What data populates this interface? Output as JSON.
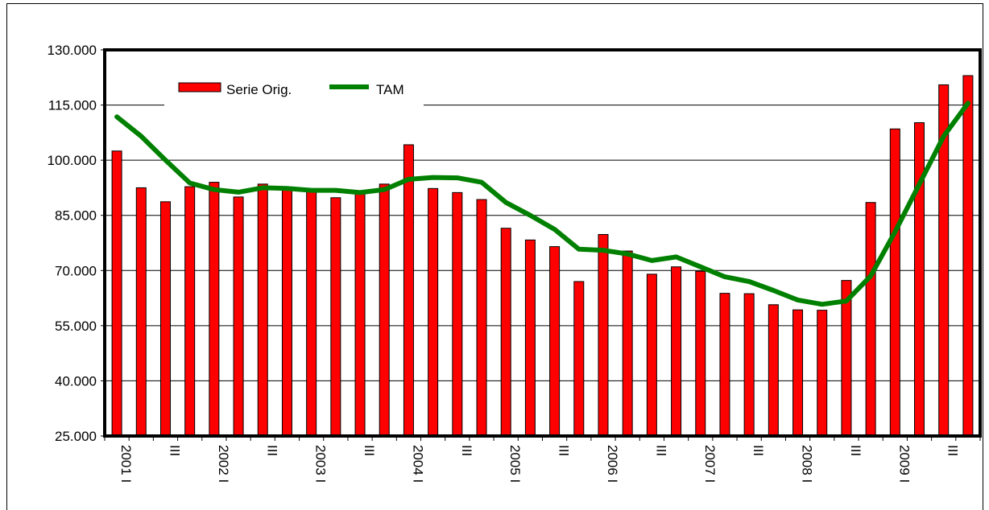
{
  "chart_data": {
    "type": "bar",
    "title": "",
    "xlabel": "",
    "ylabel": "",
    "ylim": [
      25000,
      130000
    ],
    "y_ticks": [
      25000,
      40000,
      55000,
      70000,
      85000,
      100000,
      115000,
      130000
    ],
    "y_tick_labels": [
      "25.000",
      "40.000",
      "55.000",
      "70.000",
      "85.000",
      "100.000",
      "115.000",
      "130.000"
    ],
    "grid": "horizontal",
    "legend_position": "top-left",
    "categories": [
      "2001 I",
      "",
      "III",
      "",
      "2002 I",
      "",
      "III",
      "",
      "2003 I",
      "",
      "III",
      "",
      "2004 I",
      "",
      "III",
      "",
      "2005 I",
      "",
      "III",
      "",
      "2006 I",
      "",
      "III",
      "",
      "2007 I",
      "",
      "III",
      "",
      "2008 I",
      "",
      "III",
      "",
      "2009 I",
      "",
      "III",
      ""
    ],
    "series": [
      {
        "name": "Serie Orig.",
        "kind": "bar",
        "color": "#ff0000",
        "values": [
          102500,
          92500,
          88700,
          92800,
          94000,
          90000,
          93500,
          92500,
          92000,
          89800,
          91500,
          93500,
          104200,
          92300,
          91200,
          89300,
          81500,
          78300,
          76500,
          67000,
          79800,
          75300,
          69000,
          71000,
          69800,
          63800,
          63700,
          60700,
          59300,
          59200,
          67300,
          88500,
          108500,
          110200,
          120500,
          123000
        ]
      },
      {
        "name": "TAM",
        "kind": "line",
        "color": "#008000",
        "values": [
          111800,
          106500,
          100000,
          93800,
          92000,
          91300,
          92500,
          92300,
          91800,
          91800,
          91200,
          92000,
          94800,
          95300,
          95200,
          94000,
          88500,
          85000,
          81200,
          75800,
          75500,
          74500,
          72700,
          73700,
          71000,
          68300,
          67000,
          64600,
          62000,
          60800,
          61700,
          68500,
          80500,
          93500,
          106500,
          115500
        ]
      }
    ]
  }
}
